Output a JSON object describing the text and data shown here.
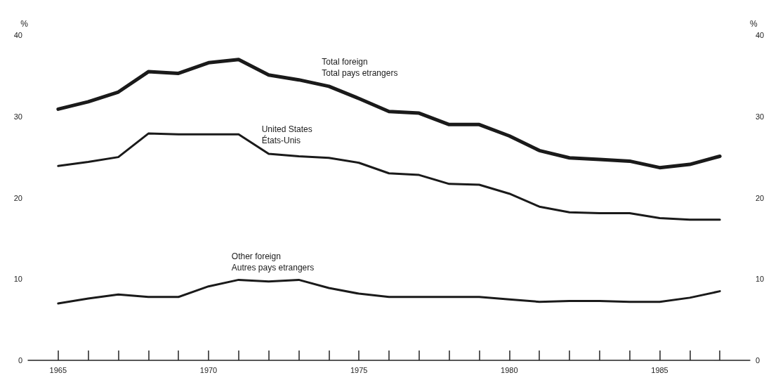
{
  "chart_data": {
    "type": "line",
    "x": [
      1965,
      1966,
      1967,
      1968,
      1969,
      1970,
      1971,
      1972,
      1973,
      1974,
      1975,
      1976,
      1977,
      1978,
      1979,
      1980,
      1981,
      1982,
      1983,
      1984,
      1985,
      1986,
      1987
    ],
    "series": [
      {
        "name": "Total foreign\nTotal pays etrangers",
        "color": "#1a1a1a",
        "values": [
          30.9,
          31.8,
          33.0,
          35.5,
          35.3,
          36.6,
          37.0,
          35.1,
          34.5,
          33.7,
          32.2,
          30.6,
          30.4,
          29.0,
          29.0,
          27.6,
          25.8,
          24.9,
          24.7,
          24.5,
          23.7,
          24.1,
          25.1
        ]
      },
      {
        "name": "United States\nÉtats-Unis",
        "color": "#1a1a1a",
        "values": [
          23.9,
          24.4,
          25.0,
          27.9,
          27.8,
          27.8,
          27.8,
          25.4,
          25.1,
          24.9,
          24.3,
          23.0,
          22.8,
          21.7,
          21.6,
          20.5,
          18.9,
          18.2,
          18.1,
          18.1,
          17.5,
          17.3,
          17.3
        ]
      },
      {
        "name": "Other foreign\nAutres pays etrangers",
        "color": "#1a1a1a",
        "values": [
          7.0,
          7.6,
          8.1,
          7.8,
          7.8,
          9.1,
          9.9,
          9.7,
          9.9,
          8.9,
          8.2,
          7.8,
          7.8,
          7.8,
          7.8,
          7.5,
          7.2,
          7.3,
          7.3,
          7.2,
          7.2,
          7.7,
          8.5
        ]
      }
    ],
    "ylabel": "%",
    "y2label": "%",
    "xlim": [
      1964,
      1988
    ],
    "xticks": [
      1965,
      {
        "value": 1966,
        "label": null
      },
      {
        "value": 1967,
        "label": null
      },
      {
        "value": 1968,
        "label": null
      },
      {
        "value": 1969,
        "label": null
      },
      1970,
      {
        "value": 1971,
        "label": null
      },
      {
        "value": 1972,
        "label": null
      },
      {
        "value": 1973,
        "label": null
      },
      {
        "value": 1974,
        "label": null
      },
      1975,
      {
        "value": 1976,
        "label": null
      },
      {
        "value": 1977,
        "label": null
      },
      {
        "value": 1978,
        "label": null
      },
      {
        "value": 1979,
        "label": null
      },
      1980,
      {
        "value": 1981,
        "label": null
      },
      {
        "value": 1982,
        "label": null
      },
      {
        "value": 1983,
        "label": null
      },
      {
        "value": 1984,
        "label": null
      },
      1985,
      {
        "value": 1986,
        "label": null
      },
      {
        "value": 1987,
        "label": null
      }
    ],
    "ylim": [
      0,
      40
    ],
    "yticks": [
      0,
      10,
      20,
      30,
      40
    ],
    "y2lim": [
      0,
      40
    ],
    "y2ticks": [
      0,
      10,
      20,
      30,
      40
    ],
    "grid": false,
    "legend": false,
    "marker": "none",
    "line_style": "solid"
  }
}
